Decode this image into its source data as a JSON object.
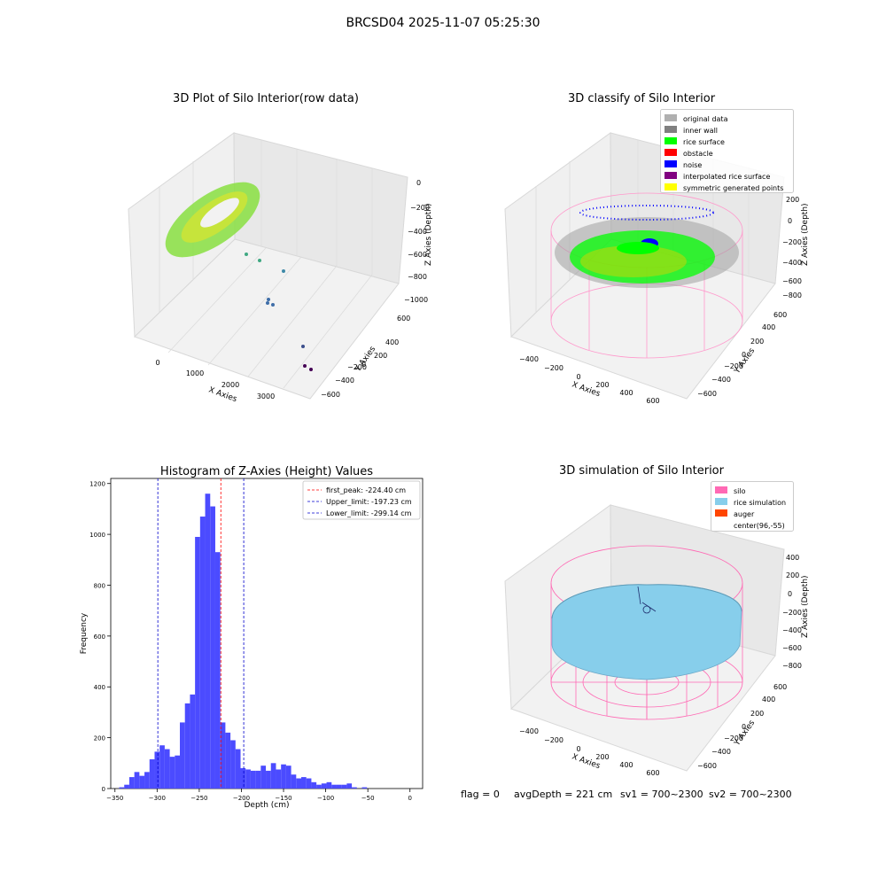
{
  "page": {
    "title": "BRCSD04 2025-11-07 05:25:30"
  },
  "panels": {
    "raw": {
      "title": "3D Plot of Silo Interior(row data)",
      "xlabel": "X Axies",
      "ylabel": "Y Axies",
      "zlabel": "Z Axies (Depth)",
      "xticks": [
        "0",
        "1000",
        "2000",
        "3000"
      ],
      "yticks": [
        "600",
        "400",
        "200",
        "0",
        "−200",
        "−400",
        "−600"
      ],
      "zticks": [
        "0",
        "−200",
        "−400",
        "−600",
        "−800",
        "−1000"
      ]
    },
    "classify": {
      "title": "3D classify of Silo Interior",
      "xlabel": "X Axies",
      "ylabel": "Y Axies",
      "zlabel": "Z Axies (Depth)",
      "xticks": [
        "−400",
        "−200",
        "0",
        "200",
        "400",
        "600"
      ],
      "yticks": [
        "600",
        "400",
        "200",
        "0",
        "−200",
        "−400",
        "−600"
      ],
      "zticks": [
        "200",
        "0",
        "−200",
        "−400",
        "−600",
        "−800"
      ],
      "legend": [
        {
          "label": "original data",
          "color": "#b0b0b0"
        },
        {
          "label": "inner wall",
          "color": "#808080"
        },
        {
          "label": "rice surface",
          "color": "#00ff00"
        },
        {
          "label": "obstacle",
          "color": "#ff0000"
        },
        {
          "label": "noise",
          "color": "#0000ff"
        },
        {
          "label": "interpolated rice surface",
          "color": "#800080"
        },
        {
          "label": "symmetric generated points",
          "color": "#ffff00"
        }
      ]
    },
    "simulation": {
      "title": "3D simulation of Silo Interior",
      "xlabel": "X Axies",
      "ylabel": "Y Axies",
      "zlabel": "Z Axies (Depth)",
      "xticks": [
        "−400",
        "−200",
        "0",
        "200",
        "400",
        "600"
      ],
      "yticks": [
        "600",
        "400",
        "200",
        "0",
        "−200",
        "−400",
        "−600"
      ],
      "zticks": [
        "400",
        "200",
        "0",
        "−200",
        "−400",
        "−600",
        "−800"
      ],
      "legend": [
        {
          "label": "silo",
          "color": "#ff69b4"
        },
        {
          "label": "rice simulation",
          "color": "#87ceeb"
        },
        {
          "label": "auger",
          "color": "#ff4500"
        },
        {
          "label": "center(96,-55)",
          "color": ""
        }
      ]
    }
  },
  "chart_data": {
    "type": "bar",
    "title": "Histogram of Z-Axies (Height) Values",
    "xlabel": "Depth (cm)",
    "ylabel": "Frequency",
    "xlim": [
      -355,
      15
    ],
    "ylim": [
      0,
      1220
    ],
    "xticks": [
      -350,
      -300,
      -250,
      -200,
      -150,
      -100,
      -50,
      0
    ],
    "yticks": [
      0,
      200,
      400,
      600,
      800,
      1000,
      1200
    ],
    "bin_start": -345,
    "bin_width": 6,
    "bar_color": "#4b4bff",
    "values": [
      5,
      15,
      45,
      65,
      50,
      65,
      115,
      145,
      170,
      155,
      125,
      130,
      260,
      335,
      370,
      990,
      1070,
      1160,
      1110,
      930,
      260,
      220,
      190,
      155,
      80,
      75,
      70,
      70,
      90,
      70,
      100,
      75,
      95,
      90,
      55,
      40,
      45,
      40,
      25,
      15,
      20,
      25,
      15,
      15,
      15,
      20,
      5,
      0,
      5
    ],
    "lines": [
      {
        "label": "first_peak: -224.40 cm",
        "x": -224.4,
        "color": "#ff0000"
      },
      {
        "label": "Upper_limit: -197.23 cm",
        "x": -197.23,
        "color": "#0000cc"
      },
      {
        "label": "Lower_limit: -299.14 cm",
        "x": -299.14,
        "color": "#0000cc"
      }
    ],
    "legend_position": "upper-right",
    "tick_labels": [
      "−350",
      "−300",
      "−250",
      "−200",
      "−150",
      "−100",
      "−50",
      "0"
    ]
  },
  "footer": {
    "flag": "flag = 0",
    "avg": "avgDepth = 221 cm",
    "sv1": "sv1 = 700~2300",
    "sv2": "sv2 = 700~2300"
  }
}
